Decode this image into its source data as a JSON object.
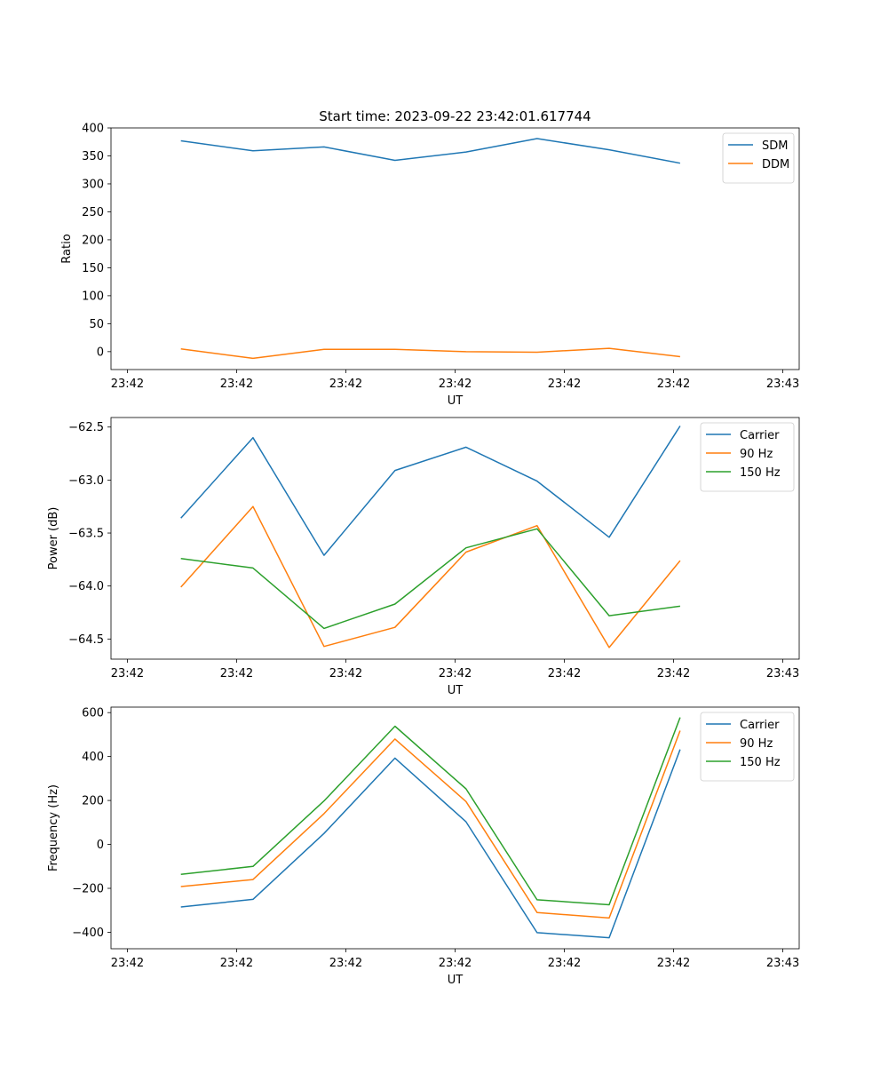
{
  "chart_data": [
    {
      "type": "line",
      "title": "Start time: 2023-09-22 23:42:01.617744",
      "xlabel": "UT",
      "ylabel": "Ratio",
      "x_tick_labels": [
        "23:42",
        "23:42",
        "23:42",
        "23:42",
        "23:42",
        "23:42",
        "23:43"
      ],
      "xlim": [
        -0.15,
        6.15
      ],
      "ylim": [
        -32,
        400
      ],
      "yticks": [
        0,
        50,
        100,
        150,
        200,
        250,
        300,
        350,
        400
      ],
      "ytick_labels": [
        "0",
        "50",
        "100",
        "150",
        "200",
        "250",
        "300",
        "350",
        "400"
      ],
      "x": [
        0.49,
        1.15,
        1.8,
        2.45,
        3.1,
        3.75,
        4.41,
        5.06
      ],
      "series": [
        {
          "name": "SDM",
          "color": "#1f77b4",
          "values": [
            377,
            359,
            366,
            342,
            357,
            381,
            361,
            337
          ]
        },
        {
          "name": "DDM",
          "color": "#ff7f0e",
          "values": [
            5,
            -12,
            4,
            4,
            0,
            -1,
            6,
            -9
          ]
        }
      ],
      "legend": "top-right",
      "grid": false
    },
    {
      "type": "line",
      "title": "",
      "xlabel": "UT",
      "ylabel": "Power (dB)",
      "x_tick_labels": [
        "23:42",
        "23:42",
        "23:42",
        "23:42",
        "23:42",
        "23:42",
        "23:43"
      ],
      "xlim": [
        -0.15,
        6.15
      ],
      "ylim": [
        -64.69,
        -62.41
      ],
      "yticks": [
        -64.5,
        -64.0,
        -63.5,
        -63.0,
        -62.5
      ],
      "ytick_labels": [
        "−64.5",
        "−64.0",
        "−63.5",
        "−63.0",
        "−62.5"
      ],
      "x": [
        0.49,
        1.15,
        1.8,
        2.45,
        3.1,
        3.75,
        4.41,
        5.06
      ],
      "series": [
        {
          "name": "Carrier",
          "color": "#1f77b4",
          "values": [
            -63.36,
            -62.6,
            -63.71,
            -62.91,
            -62.69,
            -63.01,
            -63.54,
            -62.49
          ]
        },
        {
          "name": "90 Hz",
          "color": "#ff7f0e",
          "values": [
            -64.01,
            -63.25,
            -64.57,
            -64.39,
            -63.68,
            -63.43,
            -64.58,
            -63.76
          ]
        },
        {
          "name": "150 Hz",
          "color": "#2ca02c",
          "values": [
            -63.74,
            -63.83,
            -64.4,
            -64.17,
            -63.64,
            -63.46,
            -64.28,
            -64.19
          ]
        }
      ],
      "legend": "top-right",
      "grid": false
    },
    {
      "type": "line",
      "title": "",
      "xlabel": "UT",
      "ylabel": "Frequency (Hz)",
      "x_tick_labels": [
        "23:42",
        "23:42",
        "23:42",
        "23:42",
        "23:42",
        "23:42",
        "23:43"
      ],
      "xlim": [
        -0.15,
        6.15
      ],
      "ylim": [
        -475,
        625
      ],
      "yticks": [
        -400,
        -200,
        0,
        200,
        400,
        600
      ],
      "ytick_labels": [
        "−400",
        "−200",
        "0",
        "200",
        "400",
        "600"
      ],
      "x": [
        0.49,
        1.15,
        1.8,
        2.45,
        3.1,
        3.75,
        4.41,
        5.06
      ],
      "series": [
        {
          "name": "Carrier",
          "color": "#1f77b4",
          "values": [
            -285,
            -250,
            50,
            393,
            103,
            -402,
            -425,
            432
          ]
        },
        {
          "name": "90 Hz",
          "color": "#ff7f0e",
          "values": [
            -192,
            -160,
            140,
            480,
            195,
            -310,
            -335,
            518
          ]
        },
        {
          "name": "150 Hz",
          "color": "#2ca02c",
          "values": [
            -136,
            -100,
            198,
            538,
            253,
            -252,
            -275,
            578
          ]
        }
      ],
      "legend": "top-right",
      "grid": false
    }
  ]
}
